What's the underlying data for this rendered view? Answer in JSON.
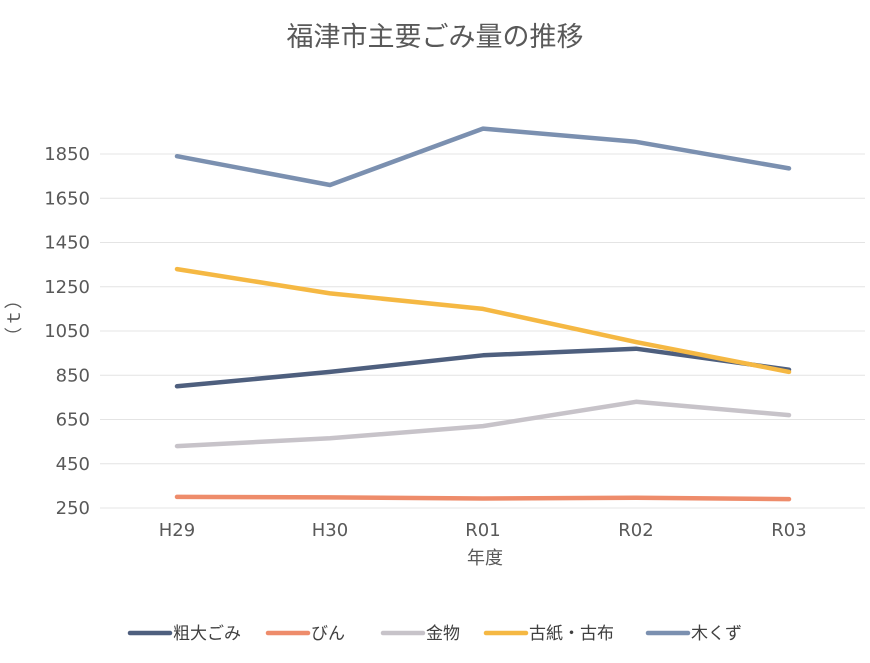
{
  "chart_data": {
    "type": "line",
    "title": "福津市主要ごみ量の推移",
    "xlabel": "年度",
    "ylabel": "（ｔ）",
    "categories": [
      "H29",
      "H30",
      "R01",
      "R02",
      "R03"
    ],
    "y_ticks": [
      250,
      450,
      650,
      850,
      1050,
      1250,
      1450,
      1650,
      1850
    ],
    "ylim": [
      250,
      1950
    ],
    "grid": true,
    "legend_position": "bottom",
    "series": [
      {
        "name": "粗大ごみ",
        "color": "#4e5f7e",
        "values": [
          800,
          865,
          940,
          970,
          875
        ]
      },
      {
        "name": "びん",
        "color": "#ee8c6b",
        "values": [
          300,
          298,
          293,
          296,
          290
        ]
      },
      {
        "name": "金物",
        "color": "#c7c3c9",
        "values": [
          530,
          565,
          620,
          730,
          670
        ]
      },
      {
        "name": "古紙・古布",
        "color": "#f5b843",
        "values": [
          1330,
          1220,
          1150,
          1000,
          865
        ]
      },
      {
        "name": "木くず",
        "color": "#7b90b0",
        "values": [
          1840,
          1710,
          1965,
          1905,
          1785
        ]
      }
    ]
  }
}
